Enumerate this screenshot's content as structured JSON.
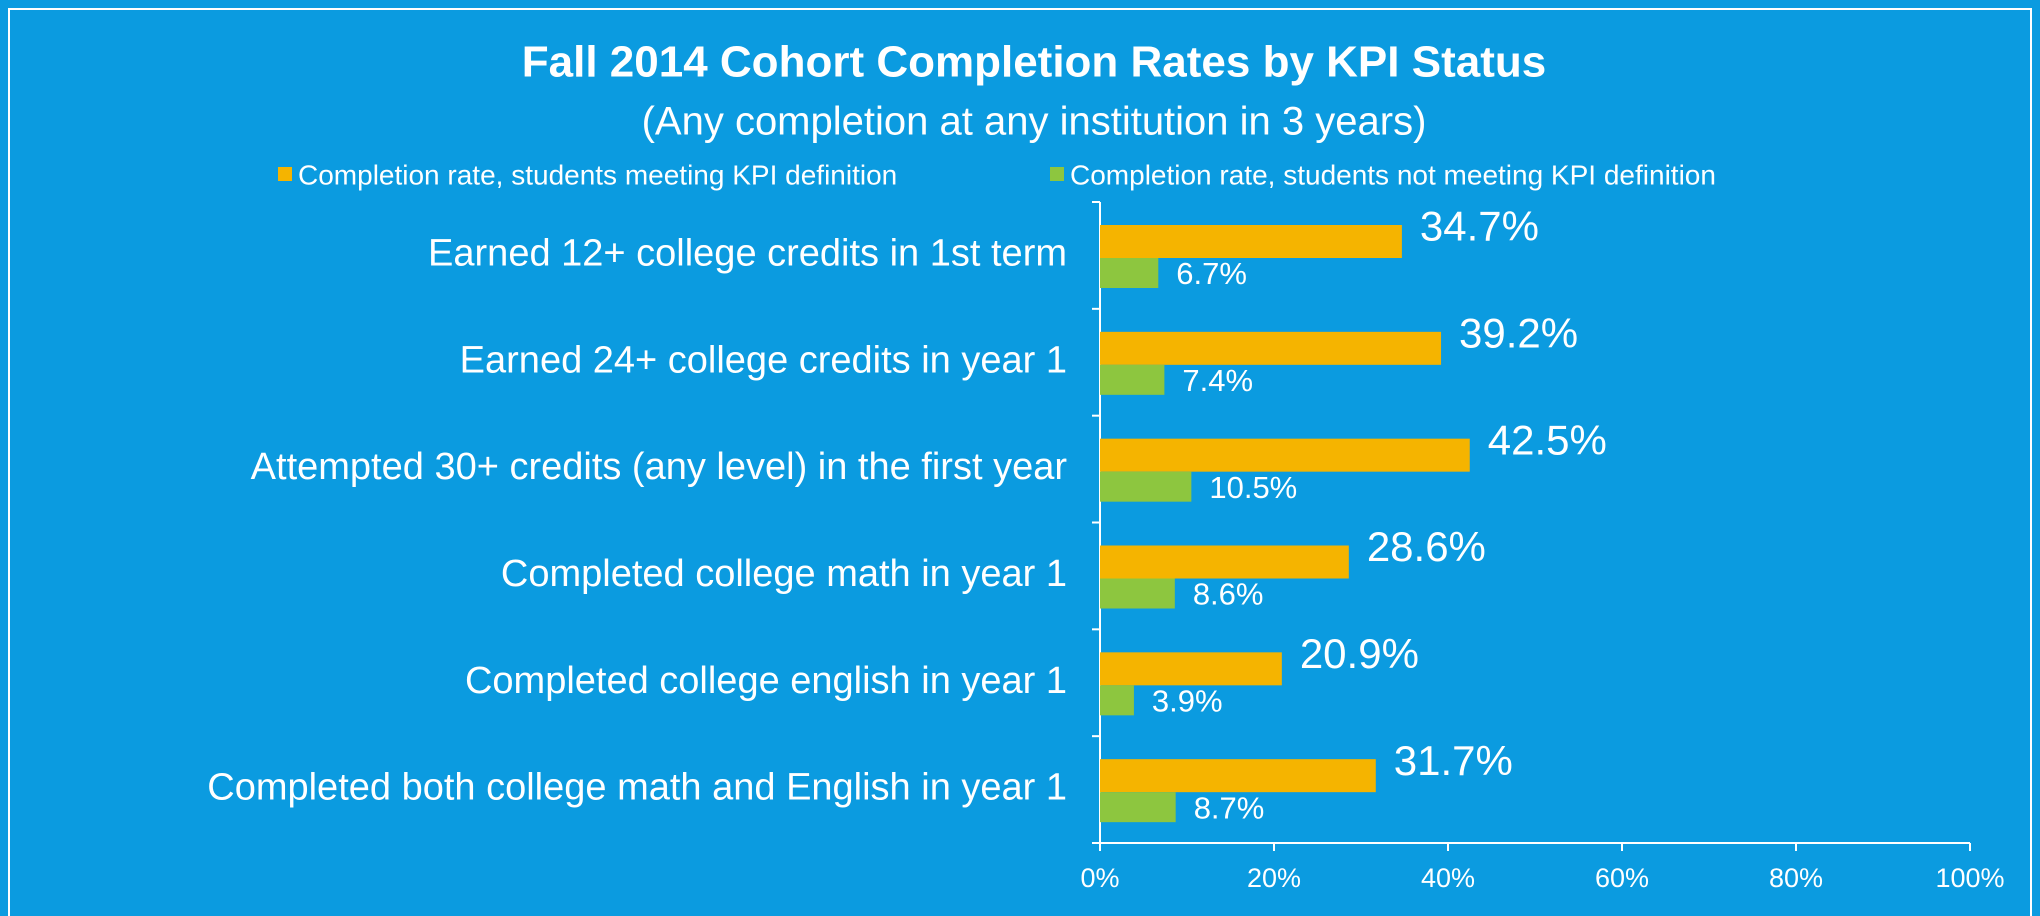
{
  "chart_data": {
    "type": "hbar",
    "title": "Fall 2014 Cohort Completion Rates by KPI Status",
    "subtitle": "(Any completion at any institution in 3 years)",
    "categories": [
      "Earned 12+ college credits in 1st term",
      "Earned 24+ college credits in year 1",
      "Attempted 30+ credits (any level) in the first year",
      "Completed college math in year 1",
      "Completed college english in year 1",
      "Completed both college math and English in year 1"
    ],
    "series": [
      {
        "name": "Completion rate, students meeting KPI definition",
        "color": "#f5b400",
        "values": [
          34.7,
          39.2,
          42.5,
          28.6,
          20.9,
          31.7
        ],
        "value_labels": [
          "34.7%",
          "39.2%",
          "42.5%",
          "28.6%",
          "20.9%",
          "31.7%"
        ]
      },
      {
        "name": "Completion rate, students not meeting KPI definition",
        "color": "#8dc63f",
        "values": [
          6.7,
          7.4,
          10.5,
          8.6,
          3.9,
          8.7
        ],
        "value_labels": [
          "6.7%",
          "7.4%",
          "10.5%",
          "8.6%",
          "3.9%",
          "8.7%"
        ]
      }
    ],
    "xlim": [
      0,
      100
    ],
    "xticks": [
      {
        "value": 0,
        "label": "0%"
      },
      {
        "value": 20,
        "label": "20%"
      },
      {
        "value": 40,
        "label": "40%"
      },
      {
        "value": 60,
        "label": "60%"
      },
      {
        "value": 80,
        "label": "80%"
      },
      {
        "value": 100,
        "label": "100%"
      }
    ],
    "grid": false,
    "legend": "top"
  }
}
